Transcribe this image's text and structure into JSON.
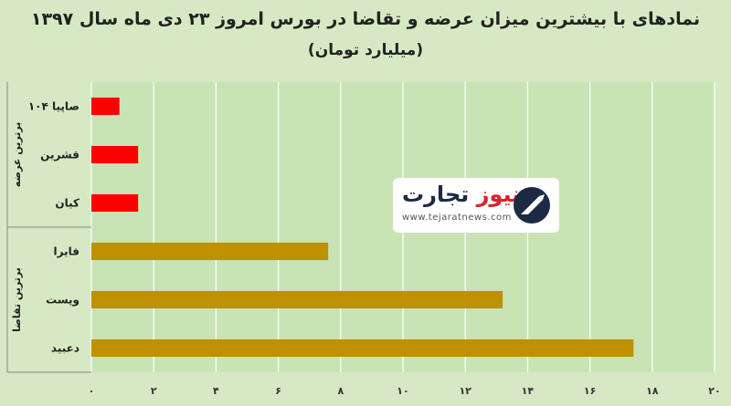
{
  "chart_data": {
    "type": "bar",
    "orientation": "horizontal",
    "title": "نمادهای با بیشترین میزان عرضه و تقاضا در بورس امروز ۲۳ دی ماه سال ۱۳۹۷",
    "subtitle": "(میلیارد تومان)",
    "categories": [
      "صاپیا ۱۰۴",
      "قشرین",
      "کیان",
      "فایرا",
      "وپست",
      "دعبید"
    ],
    "values": [
      0.9,
      1.5,
      1.5,
      7.6,
      13.2,
      17.4
    ],
    "colors": [
      "#ff0000",
      "#ff0000",
      "#ff0000",
      "#bf9000",
      "#bf9000",
      "#bf9000"
    ],
    "groups": [
      {
        "label": "برترین عرضه",
        "count": 3
      },
      {
        "label": "برترین تقاضا",
        "count": 3
      }
    ],
    "xlim": [
      0,
      20
    ],
    "ticks": [
      0,
      2,
      4,
      6,
      8,
      10,
      12,
      14,
      16,
      18,
      20
    ],
    "tick_labels": [
      "۰",
      "۲",
      "۴",
      "۶",
      "۸",
      "۱۰",
      "۱۲",
      "۱۴",
      "۱۶",
      "۱۸",
      "۲۰"
    ],
    "grid": true,
    "plot_background": "#c8e4b4",
    "page_background": "#d6e9c4"
  },
  "watermark": {
    "word_main": "تجارت",
    "word_accent": "نیوز",
    "url": "www.tejaratnews.com"
  }
}
